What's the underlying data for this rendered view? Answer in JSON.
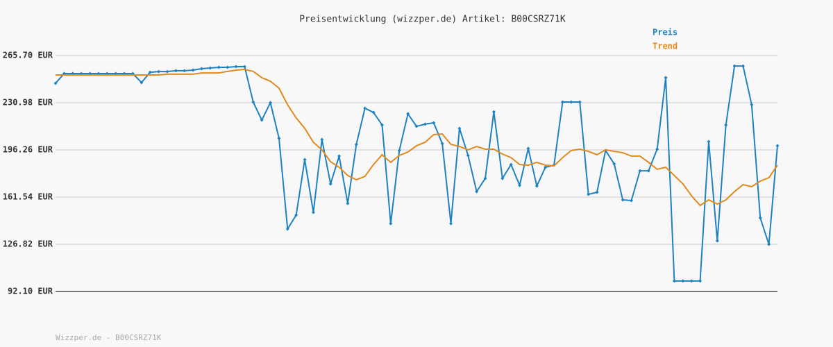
{
  "chart_data": {
    "type": "line",
    "title": "Preisentwicklung (wizzper.de) Artikel: B00CSRZ71K",
    "footer": "Wizzper.de - B00CSRZ71K",
    "categories": [
      null,
      null,
      null,
      null,
      null,
      null,
      null,
      null,
      null,
      null,
      null,
      null,
      null,
      null,
      null,
      null,
      null,
      null,
      null,
      null,
      null,
      null,
      null,
      null,
      null,
      null,
      null,
      null,
      null,
      null,
      null,
      null,
      null,
      null,
      null,
      null,
      null,
      null,
      null,
      null,
      null,
      null,
      null,
      null,
      null,
      null,
      null,
      null,
      null,
      null,
      null,
      null,
      null,
      null,
      null,
      null,
      null,
      null,
      null,
      null,
      null,
      null,
      null,
      null,
      null,
      null,
      null,
      null,
      null,
      null,
      null,
      null,
      null,
      null,
      null,
      null,
      null,
      null,
      null,
      null,
      null,
      null,
      null,
      null,
      null
    ],
    "series": [
      {
        "name": "Preis",
        "color": "#1f82c0",
        "markers": true,
        "values": [
          245.3,
          252.4,
          252.4,
          252.4,
          252.4,
          252.4,
          252.4,
          252.4,
          252.4,
          252.4,
          245.8,
          253.4,
          253.9,
          253.9,
          254.5,
          254.5,
          255.0,
          256.0,
          256.5,
          257.0,
          257.0,
          257.5,
          257.5,
          231.5,
          218.2,
          231.0,
          204.9,
          138.1,
          148.3,
          189.1,
          150.3,
          203.9,
          171.2,
          191.7,
          156.9,
          200.3,
          226.9,
          223.8,
          214.6,
          142.1,
          195.8,
          222.8,
          213.6,
          215.2,
          216.2,
          200.9,
          142.1,
          212.1,
          192.2,
          165.6,
          175.3,
          224.3,
          175.3,
          185.5,
          170.2,
          197.3,
          169.7,
          183.5,
          185.0,
          231.5,
          231.5,
          231.5,
          163.6,
          165.1,
          195.8,
          186.0,
          159.5,
          159.0,
          180.9,
          180.9,
          196.8,
          249.4,
          99.8,
          99.8,
          99.8,
          99.8,
          202.4,
          129.4,
          214.6,
          258.0,
          258.0,
          229.5,
          146.2,
          126.8,
          199.3
        ]
      },
      {
        "name": "Trend",
        "color": "#e08a1e",
        "markers": false,
        "values": [
          251.4,
          251.4,
          251.4,
          251.4,
          251.4,
          251.4,
          251.4,
          251.4,
          251.4,
          251.4,
          251.4,
          251.4,
          251.4,
          252.0,
          252.0,
          252.0,
          252.0,
          252.9,
          252.9,
          252.9,
          254.0,
          254.9,
          255.5,
          254.0,
          249.4,
          246.8,
          241.7,
          229.5,
          219.8,
          212.1,
          201.9,
          196.3,
          187.6,
          183.5,
          177.4,
          174.3,
          176.8,
          185.5,
          192.7,
          187.1,
          192.2,
          194.7,
          199.3,
          201.9,
          207.5,
          208.0,
          200.3,
          198.8,
          196.3,
          198.8,
          196.8,
          196.8,
          193.2,
          190.6,
          185.5,
          185.0,
          187.1,
          185.0,
          184.5,
          190.6,
          195.8,
          196.8,
          195.2,
          192.7,
          196.3,
          195.2,
          194.2,
          191.7,
          191.7,
          187.1,
          182.0,
          183.5,
          177.4,
          171.2,
          162.5,
          155.4,
          159.5,
          156.4,
          159.5,
          165.6,
          170.7,
          169.2,
          173.3,
          175.8,
          185.0
        ]
      }
    ],
    "ylim": [
      92.1,
      265.7
    ],
    "yticks": [
      {
        "value": 92.1,
        "label": "92.10 EUR"
      },
      {
        "value": 126.82,
        "label": "126.82 EUR"
      },
      {
        "value": 161.54,
        "label": "161.54 EUR"
      },
      {
        "value": 196.26,
        "label": "196.26 EUR"
      },
      {
        "value": 230.98,
        "label": "230.98 EUR"
      },
      {
        "value": 265.7,
        "label": "265.70 EUR"
      }
    ],
    "grid": true
  }
}
